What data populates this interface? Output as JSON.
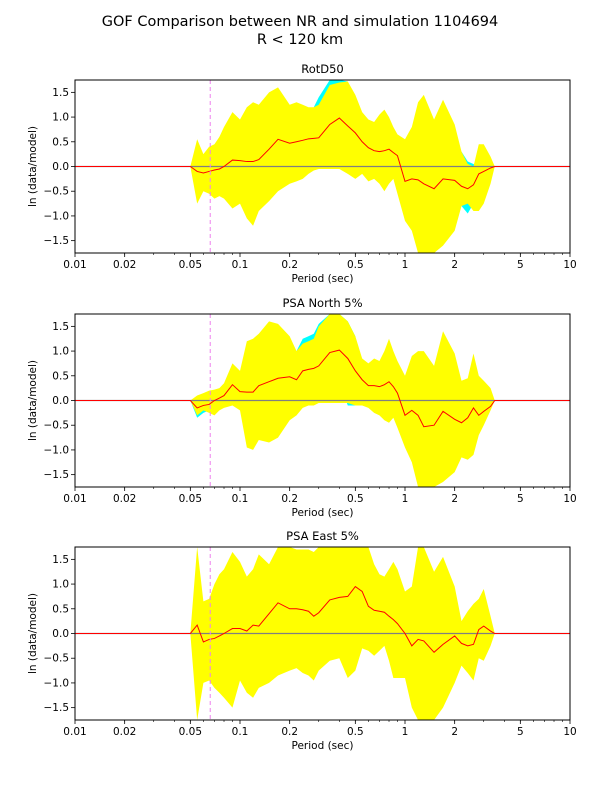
{
  "figure": {
    "title_line1": "GOF Comparison between NR and simulation 1104694",
    "title_line2": "R < 120 km"
  },
  "chart_data": [
    {
      "type": "area",
      "title": "RotD50",
      "xlabel": "Period (sec)",
      "ylabel": "ln (data/model)",
      "xscale": "log",
      "xlim": [
        0.01,
        10
      ],
      "ylim": [
        -1.75,
        1.75
      ],
      "xticks": [
        0.01,
        0.02,
        0.05,
        0.1,
        0.2,
        0.5,
        1,
        2,
        5,
        10
      ],
      "xtick_labels": [
        "0.01",
        "0.02",
        "0.05",
        "0.1",
        "0.2",
        "0.5",
        "1",
        "2",
        "5",
        "10"
      ],
      "yticks": [
        -1.5,
        -1.0,
        -0.5,
        0.0,
        0.5,
        1.0,
        1.5
      ],
      "ytick_labels": [
        "−1.5",
        "−1.0",
        "−0.5",
        "0.0",
        "0.5",
        "1.0",
        "1.5"
      ],
      "vline_x": 0.066,
      "x": [
        0.05,
        0.055,
        0.06,
        0.065,
        0.07,
        0.075,
        0.08,
        0.09,
        0.1,
        0.11,
        0.12,
        0.13,
        0.15,
        0.17,
        0.2,
        0.22,
        0.24,
        0.26,
        0.28,
        0.3,
        0.35,
        0.4,
        0.45,
        0.5,
        0.55,
        0.6,
        0.65,
        0.7,
        0.75,
        0.8,
        0.85,
        0.9,
        1.0,
        1.1,
        1.2,
        1.3,
        1.5,
        1.7,
        2.0,
        2.2,
        2.4,
        2.6,
        2.8,
        3.0,
        3.3,
        3.5
      ],
      "mean": [
        0.0,
        -0.1,
        -0.13,
        -0.1,
        -0.07,
        -0.05,
        0.0,
        0.13,
        0.12,
        0.1,
        0.1,
        0.14,
        0.35,
        0.55,
        0.47,
        0.5,
        0.53,
        0.56,
        0.57,
        0.58,
        0.85,
        0.98,
        0.82,
        0.68,
        0.5,
        0.38,
        0.32,
        0.3,
        0.32,
        0.35,
        0.28,
        0.22,
        -0.3,
        -0.25,
        -0.27,
        -0.35,
        -0.45,
        -0.25,
        -0.28,
        -0.4,
        -0.45,
        -0.37,
        -0.15,
        -0.1,
        -0.03,
        0.0
      ],
      "std_upper": [
        0.0,
        0.55,
        0.25,
        0.4,
        0.45,
        0.6,
        0.8,
        1.1,
        0.95,
        1.2,
        1.3,
        1.25,
        1.5,
        1.6,
        1.25,
        1.3,
        1.25,
        1.2,
        1.2,
        1.25,
        1.65,
        1.7,
        1.72,
        1.45,
        1.1,
        0.95,
        0.9,
        1.05,
        1.15,
        1.0,
        0.8,
        0.65,
        0.55,
        0.8,
        1.3,
        1.45,
        0.95,
        1.35,
        0.85,
        0.3,
        0.05,
        0.0,
        0.45,
        0.45,
        0.2,
        0.0
      ],
      "std_lower": [
        0.0,
        -0.75,
        -0.5,
        -0.55,
        -0.65,
        -0.6,
        -0.65,
        -0.85,
        -0.75,
        -1.05,
        -1.2,
        -0.9,
        -0.7,
        -0.5,
        -0.35,
        -0.3,
        -0.25,
        -0.15,
        -0.08,
        -0.05,
        -0.05,
        -0.05,
        -0.15,
        -0.25,
        -0.15,
        -0.3,
        -0.25,
        -0.35,
        -0.5,
        -0.35,
        -0.25,
        -0.55,
        -1.1,
        -1.3,
        -1.75,
        -1.75,
        -1.75,
        -1.6,
        -1.3,
        -0.8,
        -0.75,
        -0.9,
        -0.9,
        -0.75,
        -0.35,
        0.0
      ],
      "fill_color": "#ffff00",
      "cyan_regions": [
        {
          "x": [
            0.05,
            0.055,
            0.06,
            0.065
          ],
          "upper": [
            0.0,
            0.2,
            0.15,
            0.05
          ],
          "lower": [
            0.0,
            -0.25,
            -0.3,
            -0.2
          ]
        },
        {
          "x": [
            0.28,
            0.3,
            0.35,
            0.4,
            0.45
          ],
          "upper": [
            1.2,
            1.4,
            1.75,
            1.75,
            1.72
          ],
          "lower": [
            0.0,
            0.05,
            0.15,
            0.3,
            -0.15
          ]
        },
        {
          "x": [
            2.2,
            2.4,
            2.6,
            2.8
          ],
          "upper": [
            0.3,
            0.1,
            0.05,
            0.0
          ],
          "lower": [
            -0.8,
            -0.95,
            -0.75,
            -0.6
          ]
        }
      ],
      "cyan_color": "#00ffff",
      "mean_color": "#ff0000",
      "zero_color": "#808080",
      "vline_color": "#ee82ee"
    },
    {
      "type": "area",
      "title": "PSA North 5%",
      "xlabel": "Period (sec)",
      "ylabel": "ln (data/model)",
      "xscale": "log",
      "xlim": [
        0.01,
        10
      ],
      "ylim": [
        -1.75,
        1.75
      ],
      "xticks": [
        0.01,
        0.02,
        0.05,
        0.1,
        0.2,
        0.5,
        1,
        2,
        5,
        10
      ],
      "xtick_labels": [
        "0.01",
        "0.02",
        "0.05",
        "0.1",
        "0.2",
        "0.5",
        "1",
        "2",
        "5",
        "10"
      ],
      "yticks": [
        -1.5,
        -1.0,
        -0.5,
        0.0,
        0.5,
        1.0,
        1.5
      ],
      "ytick_labels": [
        "−1.5",
        "−1.0",
        "−0.5",
        "0.0",
        "0.5",
        "1.0",
        "1.5"
      ],
      "vline_x": 0.066,
      "x": [
        0.05,
        0.055,
        0.06,
        0.065,
        0.07,
        0.075,
        0.08,
        0.09,
        0.1,
        0.11,
        0.12,
        0.13,
        0.15,
        0.17,
        0.2,
        0.22,
        0.24,
        0.26,
        0.28,
        0.3,
        0.35,
        0.4,
        0.45,
        0.5,
        0.55,
        0.6,
        0.65,
        0.7,
        0.75,
        0.8,
        0.85,
        0.9,
        1.0,
        1.1,
        1.2,
        1.3,
        1.5,
        1.7,
        2.0,
        2.2,
        2.4,
        2.6,
        2.8,
        3.0,
        3.3,
        3.5
      ],
      "mean": [
        0.0,
        -0.15,
        -0.1,
        -0.08,
        0.0,
        0.05,
        0.1,
        0.32,
        0.18,
        0.17,
        0.17,
        0.3,
        0.38,
        0.45,
        0.48,
        0.42,
        0.6,
        0.63,
        0.65,
        0.7,
        0.97,
        1.02,
        0.85,
        0.6,
        0.42,
        0.3,
        0.3,
        0.28,
        0.32,
        0.38,
        0.28,
        0.15,
        -0.3,
        -0.2,
        -0.3,
        -0.53,
        -0.5,
        -0.22,
        -0.38,
        -0.45,
        -0.35,
        -0.15,
        -0.3,
        -0.22,
        -0.12,
        0.0
      ],
      "std_upper": [
        0.0,
        0.1,
        0.15,
        0.2,
        0.22,
        0.25,
        0.35,
        0.75,
        0.6,
        1.2,
        1.25,
        1.35,
        1.6,
        1.55,
        1.3,
        1.0,
        1.15,
        1.2,
        1.25,
        1.5,
        1.75,
        1.75,
        1.6,
        1.3,
        0.85,
        0.75,
        0.85,
        0.8,
        1.0,
        1.25,
        1.0,
        0.8,
        0.5,
        0.9,
        1.0,
        1.0,
        0.7,
        1.4,
        0.95,
        0.4,
        0.45,
        0.95,
        0.5,
        0.4,
        0.25,
        0.0
      ],
      "std_lower": [
        0.0,
        -0.3,
        -0.2,
        -0.25,
        -0.3,
        -0.2,
        -0.15,
        -0.1,
        -0.2,
        -0.95,
        -1.0,
        -0.8,
        -0.85,
        -0.75,
        -0.4,
        -0.3,
        -0.15,
        -0.1,
        -0.1,
        -0.05,
        -0.05,
        -0.05,
        -0.05,
        -0.1,
        -0.1,
        -0.15,
        -0.25,
        -0.3,
        -0.4,
        -0.45,
        -0.35,
        -0.55,
        -0.95,
        -1.25,
        -1.75,
        -1.75,
        -1.75,
        -1.65,
        -1.45,
        -1.15,
        -1.2,
        -1.1,
        -0.7,
        -0.5,
        -0.2,
        0.0
      ],
      "fill_color": "#ffff00",
      "cyan_regions": [
        {
          "x": [
            0.05,
            0.055,
            0.06,
            0.065
          ],
          "upper": [
            0.0,
            0.05,
            0.05,
            0.05
          ],
          "lower": [
            0.0,
            -0.35,
            -0.25,
            -0.2
          ]
        },
        {
          "x": [
            0.22,
            0.24,
            0.26,
            0.28,
            0.3,
            0.35,
            0.4,
            0.45,
            0.5
          ],
          "upper": [
            1.0,
            1.25,
            1.3,
            1.35,
            1.55,
            1.75,
            1.75,
            1.6,
            1.3
          ],
          "lower": [
            -0.3,
            0.1,
            0.25,
            0.3,
            0.3,
            0.4,
            0.38,
            -0.1,
            -0.1
          ]
        }
      ],
      "cyan_color": "#00ffff",
      "mean_color": "#ff0000",
      "zero_color": "#808080",
      "vline_color": "#ee82ee"
    },
    {
      "type": "area",
      "title": "PSA East 5%",
      "xlabel": "Period (sec)",
      "ylabel": "ln (data/model)",
      "xscale": "log",
      "xlim": [
        0.01,
        10
      ],
      "ylim": [
        -1.75,
        1.75
      ],
      "xticks": [
        0.01,
        0.02,
        0.05,
        0.1,
        0.2,
        0.5,
        1,
        2,
        5,
        10
      ],
      "xtick_labels": [
        "0.01",
        "0.02",
        "0.05",
        "0.1",
        "0.2",
        "0.5",
        "1",
        "2",
        "5",
        "10"
      ],
      "yticks": [
        -1.5,
        -1.0,
        -0.5,
        0.0,
        0.5,
        1.0,
        1.5
      ],
      "ytick_labels": [
        "−1.5",
        "−1.0",
        "−0.5",
        "0.0",
        "0.5",
        "1.0",
        "1.5"
      ],
      "vline_x": 0.066,
      "x": [
        0.05,
        0.055,
        0.06,
        0.065,
        0.07,
        0.075,
        0.08,
        0.09,
        0.1,
        0.11,
        0.12,
        0.13,
        0.15,
        0.17,
        0.2,
        0.22,
        0.24,
        0.26,
        0.28,
        0.3,
        0.35,
        0.4,
        0.45,
        0.5,
        0.55,
        0.6,
        0.65,
        0.7,
        0.75,
        0.8,
        0.85,
        0.9,
        1.0,
        1.1,
        1.2,
        1.3,
        1.5,
        1.7,
        2.0,
        2.2,
        2.4,
        2.6,
        2.8,
        3.0,
        3.3,
        3.5
      ],
      "mean": [
        0.0,
        0.17,
        -0.17,
        -0.12,
        -0.1,
        -0.05,
        0.0,
        0.1,
        0.1,
        0.05,
        0.17,
        0.15,
        0.4,
        0.62,
        0.5,
        0.5,
        0.48,
        0.45,
        0.35,
        0.42,
        0.68,
        0.73,
        0.75,
        0.95,
        0.85,
        0.55,
        0.47,
        0.45,
        0.43,
        0.35,
        0.28,
        0.2,
        0.0,
        -0.25,
        -0.12,
        -0.15,
        -0.38,
        -0.22,
        -0.05,
        -0.2,
        -0.25,
        -0.22,
        0.08,
        0.15,
        0.05,
        0.0
      ],
      "std_upper": [
        0.0,
        1.75,
        0.65,
        0.7,
        1.0,
        1.2,
        1.3,
        1.65,
        1.45,
        1.15,
        1.3,
        1.6,
        1.4,
        1.75,
        1.75,
        1.7,
        1.7,
        1.7,
        1.65,
        1.75,
        1.75,
        1.75,
        1.75,
        1.75,
        1.75,
        1.75,
        1.4,
        1.2,
        1.15,
        1.3,
        1.45,
        1.3,
        0.85,
        0.95,
        1.75,
        1.75,
        1.25,
        1.55,
        0.95,
        0.25,
        0.45,
        0.6,
        0.7,
        0.9,
        0.35,
        0.0
      ],
      "std_lower": [
        0.0,
        -1.75,
        -1.0,
        -0.95,
        -1.1,
        -1.2,
        -1.3,
        -1.5,
        -0.95,
        -1.2,
        -1.3,
        -1.1,
        -1.0,
        -0.85,
        -0.75,
        -0.7,
        -0.8,
        -0.85,
        -0.95,
        -0.75,
        -0.55,
        -0.5,
        -0.9,
        -0.75,
        -0.3,
        -0.35,
        -0.45,
        -0.35,
        -0.25,
        -0.55,
        -0.9,
        -0.9,
        -0.9,
        -1.5,
        -1.75,
        -1.75,
        -1.75,
        -1.5,
        -1.0,
        -0.65,
        -0.8,
        -0.95,
        -0.5,
        -0.55,
        -0.25,
        0.0
      ],
      "fill_color": "#ffff00",
      "cyan_regions": [],
      "cyan_color": "#00ffff",
      "mean_color": "#ff0000",
      "zero_color": "#808080",
      "vline_color": "#ee82ee"
    }
  ]
}
